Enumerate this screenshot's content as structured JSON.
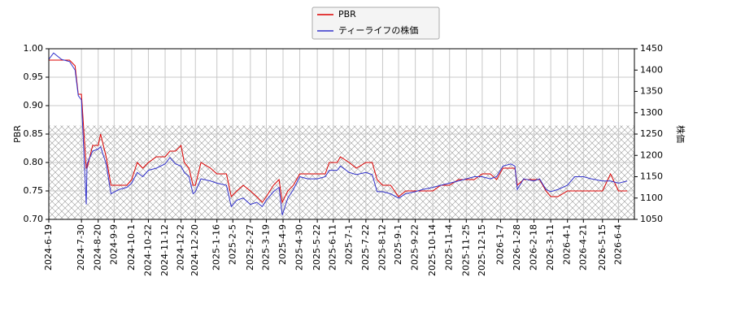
{
  "chart_data": {
    "type": "line",
    "x": [
      "2024-06-19",
      "2024-06-25",
      "2024-07-05",
      "2024-07-15",
      "2024-07-22",
      "2024-07-26",
      "2024-07-30",
      "2024-08-05",
      "2024-08-06",
      "2024-08-13",
      "2024-08-20",
      "2024-08-23",
      "2024-08-30",
      "2024-09-05",
      "2024-09-15",
      "2024-09-25",
      "2024-10-01",
      "2024-10-08",
      "2024-10-15",
      "2024-10-22",
      "2024-11-01",
      "2024-11-12",
      "2024-11-18",
      "2024-11-25",
      "2024-12-02",
      "2024-12-06",
      "2024-12-12",
      "2024-12-17",
      "2024-12-20",
      "2024-12-27",
      "2025-01-08",
      "2025-01-16",
      "2025-01-28",
      "2025-02-03",
      "2025-02-10",
      "2025-02-18",
      "2025-02-27",
      "2025-03-07",
      "2025-03-14",
      "2025-03-19",
      "2025-03-28",
      "2025-04-04",
      "2025-04-08",
      "2025-04-15",
      "2025-04-22",
      "2025-04-30",
      "2025-05-10",
      "2025-05-22",
      "2025-06-01",
      "2025-06-06",
      "2025-06-16",
      "2025-06-20",
      "2025-07-01",
      "2025-07-10",
      "2025-07-22",
      "2025-07-30",
      "2025-08-05",
      "2025-08-12",
      "2025-08-22",
      "2025-09-01",
      "2025-09-10",
      "2025-09-22",
      "2025-10-01",
      "2025-10-14",
      "2025-10-24",
      "2025-11-04",
      "2025-11-15",
      "2025-11-25",
      "2025-12-05",
      "2025-12-15",
      "2025-12-25",
      "2026-01-02",
      "2026-01-10",
      "2026-01-20",
      "2026-01-25",
      "2026-01-28",
      "2026-02-05",
      "2026-02-18",
      "2026-02-25",
      "2026-03-05",
      "2026-03-11",
      "2026-03-20",
      "2026-04-01",
      "2026-04-10",
      "2026-04-21",
      "2026-05-01",
      "2026-05-15",
      "2026-05-25",
      "2026-06-04",
      "2026-06-15"
    ],
    "series": [
      {
        "name": "PBR",
        "color": "#dd0000",
        "axis": "y",
        "values": [
          0.98,
          0.98,
          0.98,
          0.98,
          0.97,
          0.92,
          0.92,
          0.79,
          0.79,
          0.83,
          0.83,
          0.85,
          0.81,
          0.76,
          0.76,
          0.76,
          0.77,
          0.8,
          0.79,
          0.8,
          0.81,
          0.81,
          0.82,
          0.82,
          0.83,
          0.8,
          0.79,
          0.76,
          0.76,
          0.8,
          0.79,
          0.78,
          0.78,
          0.74,
          0.75,
          0.76,
          0.75,
          0.74,
          0.73,
          0.74,
          0.76,
          0.77,
          0.73,
          0.75,
          0.76,
          0.78,
          0.78,
          0.78,
          0.78,
          0.8,
          0.8,
          0.81,
          0.8,
          0.79,
          0.8,
          0.8,
          0.77,
          0.76,
          0.76,
          0.74,
          0.75,
          0.75,
          0.75,
          0.75,
          0.76,
          0.76,
          0.77,
          0.77,
          0.77,
          0.78,
          0.78,
          0.77,
          0.79,
          0.79,
          0.79,
          0.76,
          0.77,
          0.77,
          0.77,
          0.75,
          0.74,
          0.74,
          0.75,
          0.75,
          0.75,
          0.75,
          0.75,
          0.78,
          0.75,
          0.75
        ]
      },
      {
        "name": "ティーライフの株価",
        "color": "#3333cc",
        "axis": "y2",
        "values": [
          1425,
          1440,
          1425,
          1420,
          1400,
          1340,
          1330,
          1085,
          1180,
          1210,
          1215,
          1220,
          1180,
          1110,
          1120,
          1125,
          1135,
          1160,
          1150,
          1165,
          1170,
          1180,
          1195,
          1180,
          1175,
          1160,
          1150,
          1110,
          1115,
          1145,
          1140,
          1135,
          1130,
          1080,
          1095,
          1100,
          1085,
          1090,
          1080,
          1095,
          1115,
          1125,
          1060,
          1100,
          1120,
          1150,
          1145,
          1145,
          1150,
          1165,
          1165,
          1175,
          1160,
          1155,
          1160,
          1155,
          1115,
          1115,
          1110,
          1100,
          1110,
          1115,
          1120,
          1125,
          1130,
          1135,
          1140,
          1145,
          1150,
          1150,
          1145,
          1150,
          1175,
          1180,
          1175,
          1120,
          1145,
          1140,
          1145,
          1120,
          1115,
          1120,
          1130,
          1150,
          1150,
          1145,
          1140,
          1140,
          1135,
          1140
        ]
      }
    ],
    "ylabel": "PBR",
    "y2label": "株価",
    "xlim": [
      "2024-06-19",
      "2026-06-24"
    ],
    "xticks": [
      {
        "value": "2024-06-19",
        "label": "2024-6-19"
      },
      {
        "value": "2024-07-30",
        "label": "2024-7-30"
      },
      {
        "value": "2024-08-20",
        "label": "2024-8-20"
      },
      {
        "value": "2024-09-09",
        "label": "2024-9-9"
      },
      {
        "value": "2024-10-01",
        "label": "2024-10-1"
      },
      {
        "value": "2024-10-22",
        "label": "2024-10-22"
      },
      {
        "value": "2024-11-12",
        "label": "2024-11-12"
      },
      {
        "value": "2024-12-02",
        "label": "2024-12-2"
      },
      {
        "value": "2024-12-20",
        "label": "2024-12-20"
      },
      {
        "value": "2025-01-16",
        "label": "2025-1-16"
      },
      {
        "value": "2025-02-05",
        "label": "2025-2-5"
      },
      {
        "value": "2025-02-27",
        "label": "2025-2-27"
      },
      {
        "value": "2025-03-19",
        "label": "2025-3-19"
      },
      {
        "value": "2025-04-09",
        "label": "2025-4-9"
      },
      {
        "value": "2025-04-30",
        "label": "2025-4-30"
      },
      {
        "value": "2025-05-22",
        "label": "2025-5-22"
      },
      {
        "value": "2025-06-11",
        "label": "2025-6-11"
      },
      {
        "value": "2025-07-01",
        "label": "2025-7-1"
      },
      {
        "value": "2025-07-22",
        "label": "2025-7-22"
      },
      {
        "value": "2025-08-12",
        "label": "2025-8-12"
      },
      {
        "value": "2025-09-01",
        "label": "2025-9-1"
      },
      {
        "value": "2025-09-22",
        "label": "2025-9-22"
      },
      {
        "value": "2025-10-14",
        "label": "2025-10-14"
      },
      {
        "value": "2025-11-04",
        "label": "2025-11-4"
      },
      {
        "value": "2025-11-25",
        "label": "2025-11-25"
      },
      {
        "value": "2025-12-15",
        "label": "2025-12-15"
      },
      {
        "value": "2026-01-07",
        "label": "2026-1-7"
      },
      {
        "value": "2026-01-28",
        "label": "2026-1-28"
      },
      {
        "value": "2026-02-18",
        "label": "2026-2-18"
      },
      {
        "value": "2026-03-11",
        "label": "2026-3-11"
      },
      {
        "value": "2026-04-01",
        "label": "2026-4-1"
      },
      {
        "value": "2026-04-21",
        "label": "2026-4-21"
      },
      {
        "value": "2026-05-15",
        "label": "2026-5-15"
      },
      {
        "value": "2026-06-04",
        "label": "2026-6-4"
      }
    ],
    "ylim": [
      0.7,
      1.0
    ],
    "yticks": [
      {
        "value": 0.7,
        "label": "0.70"
      },
      {
        "value": 0.75,
        "label": "0.75"
      },
      {
        "value": 0.8,
        "label": "0.80"
      },
      {
        "value": 0.85,
        "label": "0.85"
      },
      {
        "value": 0.9,
        "label": "0.90"
      },
      {
        "value": 0.95,
        "label": "0.95"
      },
      {
        "value": 1.0,
        "label": "1.00"
      }
    ],
    "y2lim": [
      1050,
      1450
    ],
    "y2ticks": [
      1050,
      1100,
      1150,
      1200,
      1250,
      1300,
      1350,
      1400,
      1450
    ],
    "hatch_range": [
      0.7,
      0.865
    ],
    "grid": true,
    "legend": "top"
  }
}
